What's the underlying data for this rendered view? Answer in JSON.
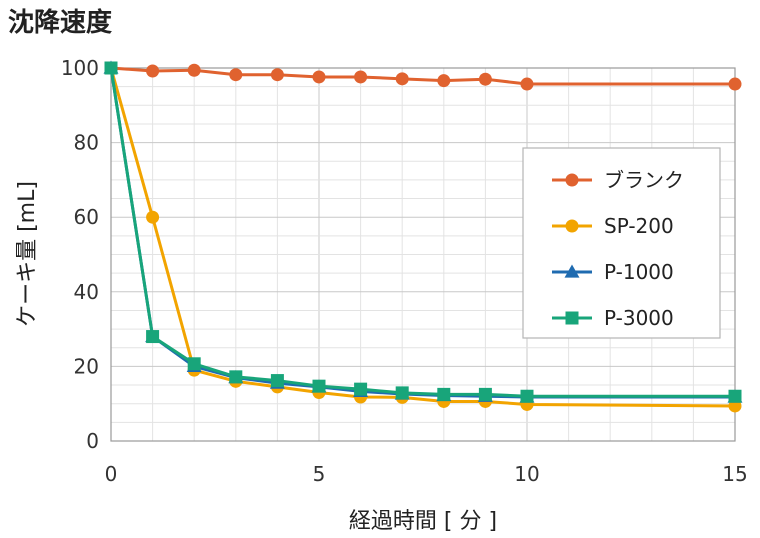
{
  "chart_data": {
    "type": "line",
    "title": "沈降速度",
    "xlabel": "経過時間 [ 分 ]",
    "ylabel": "ケーキ量 [mL]",
    "xlim": [
      0,
      15
    ],
    "ylim": [
      0,
      100
    ],
    "xticks": [
      0,
      5,
      10,
      15
    ],
    "yticks": [
      0,
      20,
      40,
      60,
      80,
      100
    ],
    "grid": true,
    "legend_position": "right",
    "x": [
      0,
      1,
      2,
      3,
      4,
      5,
      6,
      7,
      8,
      9,
      10,
      15
    ],
    "series": [
      {
        "name": "ブランク",
        "color": "#e0622f",
        "marker": "circle",
        "values": [
          100,
          99.2,
          99.4,
          98.2,
          98.2,
          97.6,
          97.6,
          97.1,
          96.6,
          97.0,
          95.7,
          95.7
        ]
      },
      {
        "name": "SP-200",
        "color": "#f2a400",
        "marker": "circle",
        "values": [
          100,
          60,
          19,
          16,
          14.5,
          13,
          11.8,
          11.7,
          10.6,
          10.6,
          9.8,
          9.4
        ]
      },
      {
        "name": "P-1000",
        "color": "#1f6bb0",
        "marker": "triangle",
        "values": [
          100,
          28,
          20,
          17,
          15.5,
          14.5,
          13.3,
          12.6,
          12.2,
          12,
          11.8,
          11.8
        ]
      },
      {
        "name": "P-3000",
        "color": "#18a57a",
        "marker": "square",
        "values": [
          100,
          28,
          20.7,
          17.2,
          16.2,
          14.7,
          13.9,
          12.9,
          12.5,
          12.5,
          12,
          12
        ]
      }
    ]
  }
}
